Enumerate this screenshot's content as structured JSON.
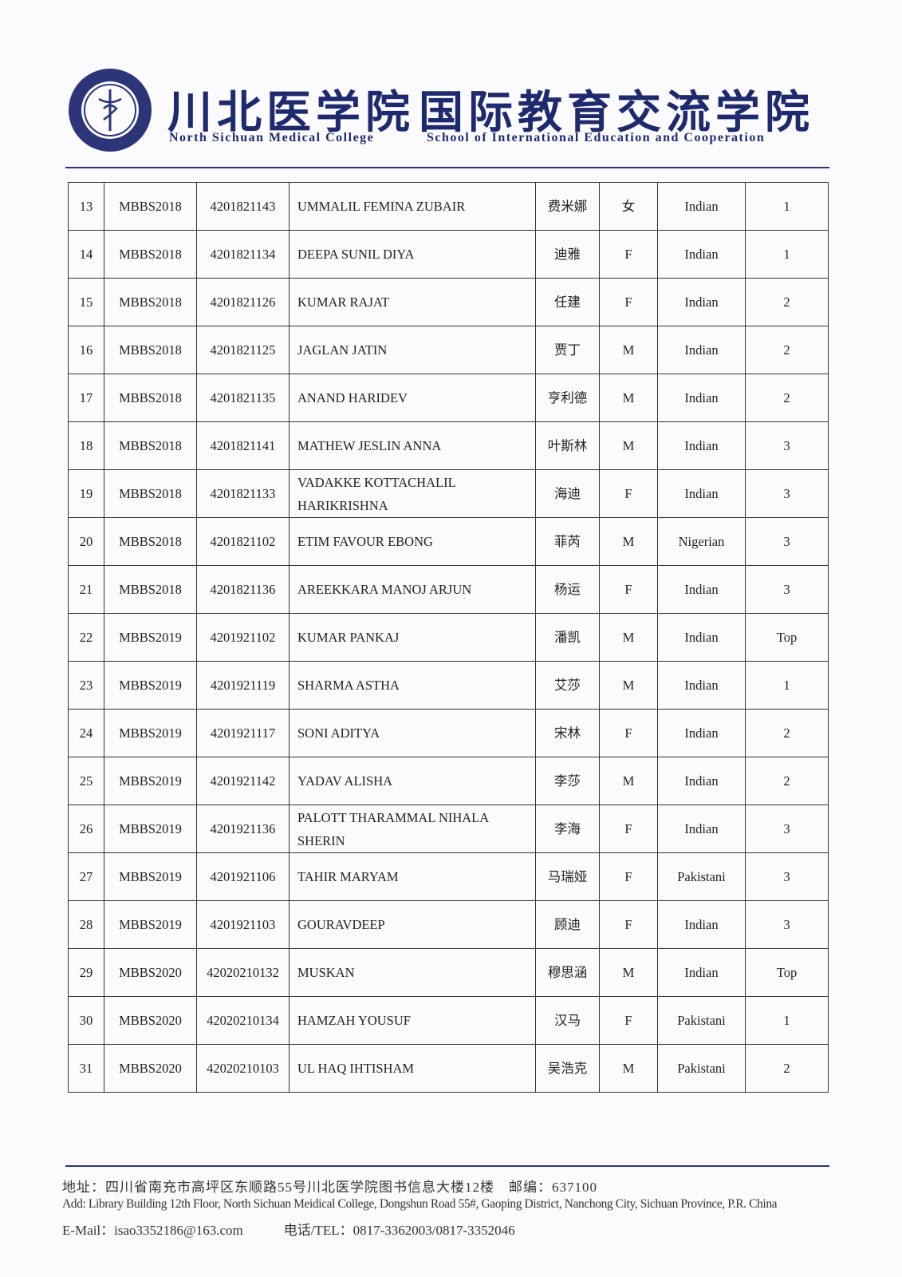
{
  "header": {
    "cn_college": "川北医学院",
    "cn_school": "国际教育交流学院",
    "en_college": "North Sichuan Medical College",
    "en_school": "School of International Education and Cooperation"
  },
  "table": {
    "rows": [
      [
        "13",
        "MBBS2018",
        "4201821143",
        "UMMALIL FEMINA ZUBAIR",
        "费米娜",
        "女",
        "Indian",
        "1"
      ],
      [
        "14",
        "MBBS2018",
        "4201821134",
        "DEEPA SUNIL DIYA",
        "迪雅",
        "F",
        "Indian",
        "1"
      ],
      [
        "15",
        "MBBS2018",
        "4201821126",
        "KUMAR RAJAT",
        "任建",
        "F",
        "Indian",
        "2"
      ],
      [
        "16",
        "MBBS2018",
        "4201821125",
        "JAGLAN JATIN",
        "贾丁",
        "M",
        "Indian",
        "2"
      ],
      [
        "17",
        "MBBS2018",
        "4201821135",
        "ANAND HARIDEV",
        "亨利德",
        "M",
        "Indian",
        "2"
      ],
      [
        "18",
        "MBBS2018",
        "4201821141",
        "MATHEW JESLIN ANNA",
        "叶斯林",
        "M",
        "Indian",
        "3"
      ],
      [
        "19",
        "MBBS2018",
        "4201821133",
        "VADAKKE KOTTACHALIL HARIKRISHNA",
        "海迪",
        "F",
        "Indian",
        "3"
      ],
      [
        "20",
        "MBBS2018",
        "4201821102",
        "ETIM FAVOUR EBONG",
        "菲芮",
        "M",
        "Nigerian",
        "3"
      ],
      [
        "21",
        "MBBS2018",
        "4201821136",
        "AREEKKARA MANOJ ARJUN",
        "杨运",
        "F",
        "Indian",
        "3"
      ],
      [
        "22",
        "MBBS2019",
        "4201921102",
        "KUMAR PANKAJ",
        "潘凯",
        "M",
        "Indian",
        "Top"
      ],
      [
        "23",
        "MBBS2019",
        "4201921119",
        "SHARMA ASTHA",
        "艾莎",
        "M",
        "Indian",
        "1"
      ],
      [
        "24",
        "MBBS2019",
        "4201921117",
        "SONI ADITYA",
        "宋林",
        "F",
        "Indian",
        "2"
      ],
      [
        "25",
        "MBBS2019",
        "4201921142",
        "YADAV ALISHA",
        "李莎",
        "M",
        "Indian",
        "2"
      ],
      [
        "26",
        "MBBS2019",
        "4201921136",
        "PALOTT THARAMMAL NIHALA SHERIN",
        "李海",
        "F",
        "Indian",
        "3"
      ],
      [
        "27",
        "MBBS2019",
        "4201921106",
        "TAHIR MARYAM",
        "马瑞娅",
        "F",
        "Pakistani",
        "3"
      ],
      [
        "28",
        "MBBS2019",
        "4201921103",
        "GOURAVDEEP",
        "顾迪",
        "F",
        "Indian",
        "3"
      ],
      [
        "29",
        "MBBS2020",
        "42020210132",
        "MUSKAN",
        "穆思涵",
        "M",
        "Indian",
        "Top"
      ],
      [
        "30",
        "MBBS2020",
        "42020210134",
        "HAMZAH YOUSUF",
        "汉马",
        "F",
        "Pakistani",
        "1"
      ],
      [
        "31",
        "MBBS2020",
        "42020210103",
        "UL HAQ IHTISHAM",
        "吴浩克",
        "M",
        "Pakistani",
        "2"
      ]
    ]
  },
  "footer": {
    "lines": [
      "地址：四川省南充市高坪区东顺路55号川北医学院图书信息大楼12楼　邮编：637100",
      "Add: Library Building 12th Floor, North Sichuan Meidical College, Dongshun Road 55#, Gaoping District, Nanchong City, Sichuan Province, P.R. China",
      "E-Mail：isao3352186@163.com　　　电话/TEL：0817-3362003/0817-3352046"
    ]
  }
}
